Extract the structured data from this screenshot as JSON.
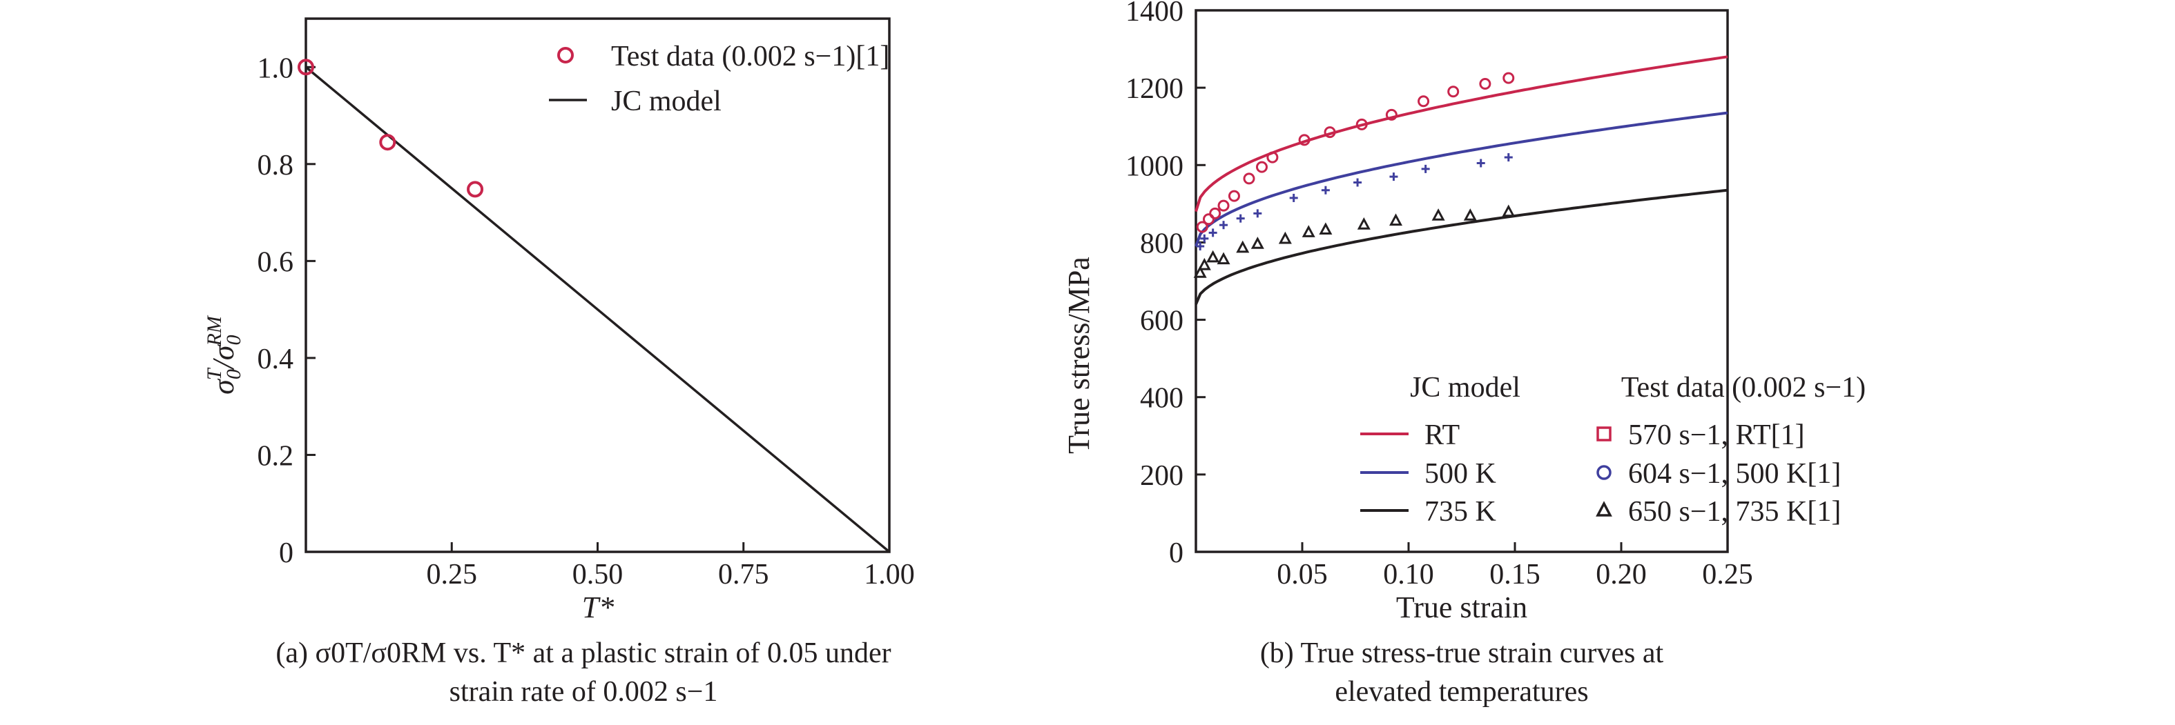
{
  "chart_data": [
    {
      "type": "scatter",
      "panel": "a",
      "title": "σ0T/σ0RM vs. T* at a plastic strain of 0.05 under strain rate of 0.002 s−1",
      "caption_line1": "(a) σ0T/σ0RM vs. T* at a plastic strain of 0.05 under",
      "caption_line2": "strain rate of 0.002 s−1",
      "xlabel": "T*",
      "ylabel": "σ0T/σ0RM",
      "xlim": [
        0,
        1.0
      ],
      "ylim": [
        0,
        1.1
      ],
      "x_ticks": [
        {
          "value": 0.25,
          "label": "0.25"
        },
        {
          "value": 0.5,
          "label": "0.50"
        },
        {
          "value": 0.75,
          "label": "0.75"
        },
        {
          "value": 1.0,
          "label": "1.00"
        }
      ],
      "y_ticks": [
        {
          "value": 0,
          "label": "0"
        },
        {
          "value": 0.2,
          "label": "0.2"
        },
        {
          "value": 0.4,
          "label": "0.4"
        },
        {
          "value": 0.6,
          "label": "0.6"
        },
        {
          "value": 0.8,
          "label": "0.8"
        },
        {
          "value": 1.0,
          "label": "1.0"
        }
      ],
      "legend": {
        "placement": "top-right",
        "test_label": "Test data (0.002 s−1)[1]",
        "model_label": "JC model"
      },
      "series": [
        {
          "name": "Test data (0.002 s−1)[1]",
          "kind": "marker-circle",
          "color": "#c8254c",
          "x": [
            0.0,
            0.14,
            0.29
          ],
          "y": [
            1.0,
            0.845,
            0.748
          ]
        },
        {
          "name": "JC model",
          "kind": "line",
          "color": "#231f20",
          "x": [
            0.0,
            1.0
          ],
          "y": [
            1.0,
            0.0
          ]
        }
      ]
    },
    {
      "type": "line",
      "panel": "b",
      "title": "True stress-true strain curves at elevated temperatures",
      "caption_line1": "(b) True stress-true strain curves at",
      "caption_line2": "elevated temperatures",
      "xlabel": "True strain",
      "ylabel": "True stress/MPa",
      "xlim": [
        0,
        0.25
      ],
      "ylim": [
        0,
        1400
      ],
      "x_ticks": [
        {
          "value": 0.05,
          "label": "0.05"
        },
        {
          "value": 0.1,
          "label": "0.10"
        },
        {
          "value": 0.15,
          "label": "0.15"
        },
        {
          "value": 0.2,
          "label": "0.20"
        },
        {
          "value": 0.25,
          "label": "0.25"
        }
      ],
      "y_ticks": [
        {
          "value": 0,
          "label": "0"
        },
        {
          "value": 200,
          "label": "200"
        },
        {
          "value": 400,
          "label": "400"
        },
        {
          "value": 600,
          "label": "600"
        },
        {
          "value": 800,
          "label": "800"
        },
        {
          "value": 1000,
          "label": "1000"
        },
        {
          "value": 1200,
          "label": "1200"
        },
        {
          "value": 1400,
          "label": "1400"
        }
      ],
      "legend": {
        "placement": "bottom-right",
        "model_header": "JC model",
        "test_header": "Test data (0.002 s−1)",
        "model_entries": [
          "RT",
          "500 K",
          "735 K"
        ],
        "test_entries": [
          "570 s−1, RT[1]",
          "604 s−1, 500 K[1]",
          "650 s−1, 735 K[1]"
        ]
      },
      "model_curves": [
        {
          "name": "RT",
          "color": "#c8254c",
          "A": 880,
          "B": 800,
          "n": 0.5
        },
        {
          "name": "500 K",
          "color": "#3f3f9e",
          "A": 790,
          "B": 690,
          "n": 0.5
        },
        {
          "name": "735 K",
          "color": "#231f20",
          "A": 640,
          "B": 590,
          "n": 0.5
        }
      ],
      "test_series": [
        {
          "name": "570 s−1, RT[1]",
          "marker": "circle",
          "color": "#c8254c",
          "x": [
            0.003,
            0.006,
            0.009,
            0.013,
            0.018,
            0.025,
            0.031,
            0.036,
            0.051,
            0.063,
            0.078,
            0.092,
            0.107,
            0.121,
            0.136,
            0.147
          ],
          "y": [
            840,
            860,
            875,
            895,
            920,
            965,
            995,
            1020,
            1065,
            1085,
            1105,
            1130,
            1165,
            1190,
            1210,
            1225
          ]
        },
        {
          "name": "604 s−1, 500 K[1]",
          "marker": "plus",
          "color": "#3f3f9e",
          "x": [
            0.002,
            0.004,
            0.008,
            0.013,
            0.021,
            0.029,
            0.046,
            0.061,
            0.076,
            0.093,
            0.108,
            0.134,
            0.147
          ],
          "y": [
            790,
            810,
            825,
            845,
            862,
            875,
            915,
            935,
            955,
            970,
            990,
            1005,
            1020
          ]
        },
        {
          "name": "650 s−1, 735 K[1]",
          "marker": "triangle",
          "color": "#231f20",
          "x": [
            0.002,
            0.004,
            0.008,
            0.013,
            0.022,
            0.029,
            0.042,
            0.053,
            0.061,
            0.079,
            0.094,
            0.114,
            0.129,
            0.147
          ],
          "y": [
            720,
            740,
            760,
            755,
            785,
            795,
            808,
            825,
            832,
            845,
            855,
            868,
            868,
            878
          ]
        }
      ]
    }
  ]
}
